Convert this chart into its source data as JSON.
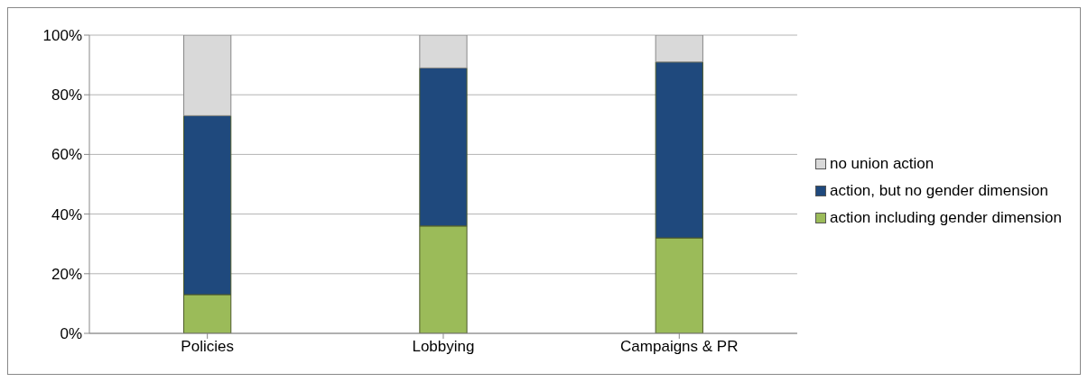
{
  "chart_data": {
    "type": "bar",
    "stacked": true,
    "categories": [
      "Policies",
      "Lobbying",
      "Campaigns & PR"
    ],
    "series": [
      {
        "name": "action including gender dimension",
        "color": "#9bbb59",
        "values": [
          13,
          36,
          32
        ]
      },
      {
        "name": "action, but no gender dimension",
        "color": "#1f497d",
        "values": [
          60,
          53,
          59
        ]
      },
      {
        "name": "no union action",
        "color": "#d9d9d9",
        "values": [
          27,
          11,
          9
        ]
      }
    ],
    "ylim": [
      0,
      100
    ],
    "yticks": [
      {
        "value": 0,
        "label": "0%"
      },
      {
        "value": 20,
        "label": "20%"
      },
      {
        "value": 40,
        "label": "40%"
      },
      {
        "value": 60,
        "label": "60%"
      },
      {
        "value": 80,
        "label": "80%"
      },
      {
        "value": 100,
        "label": "100%"
      }
    ],
    "grid": "y",
    "legend": "right"
  }
}
